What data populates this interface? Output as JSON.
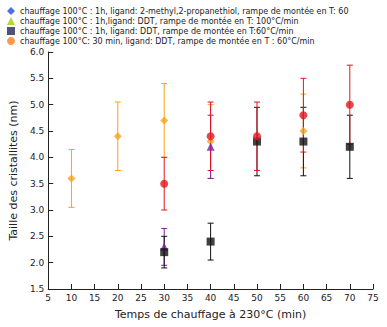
{
  "chart_data": {
    "type": "scatter",
    "x_label": "Temps de chauffage à 230°C (min)",
    "y_label": "Taille des cristallites (nm)",
    "xlim": [
      5,
      75
    ],
    "xticks": [
      5,
      10,
      15,
      20,
      25,
      30,
      35,
      40,
      45,
      50,
      55,
      60,
      65,
      70,
      75
    ],
    "ylim": [
      1.5,
      6.0
    ],
    "yticks": [
      1.5,
      {
        "value": 2,
        "label": "2.0"
      },
      2.5,
      {
        "value": 3,
        "label": "3.0"
      },
      3.5,
      {
        "value": 4,
        "label": "4.0"
      },
      4.5,
      {
        "value": 5,
        "label": "5.0"
      },
      5.5,
      {
        "value": 6,
        "label": "6.0"
      }
    ],
    "grid": false,
    "legend": "top",
    "series": [
      {
        "name": "chauffage 100°C : 1h, ligand: 2-methyl,2-propanethiol, rampe de montée en T: 60",
        "color": "#f7a21b",
        "marker": "diamond",
        "x": [
          10,
          20,
          30,
          40,
          60
        ],
        "values": [
          3.6,
          4.4,
          4.7,
          4.3,
          4.5
        ],
        "errors": [
          0.55,
          0.65,
          0.7,
          0.7,
          0.7
        ]
      },
      {
        "name": "chauffage 100°C : 1h,ligand: DDT, rampe de montée en T: 100°C/min",
        "color": "#7b1fa2",
        "marker": "triangle",
        "x": [
          30,
          40
        ],
        "values": [
          2.3,
          4.2
        ],
        "errors": [
          0.35,
          0.6
        ]
      },
      {
        "name": "chauffage 100°C : 1h, ligand: DDT, rampe de montée en T:60°C/min",
        "color": "#111111",
        "marker": "square",
        "x": [
          30,
          40,
          50,
          60,
          70
        ],
        "values": [
          2.2,
          2.4,
          4.3,
          4.3,
          4.2
        ],
        "errors": [
          0.3,
          0.35,
          0.65,
          0.65,
          0.6
        ]
      },
      {
        "name": "chauffage 100°C: 30 min, ligand: DDT, rampe de montée en T : 60°C/min",
        "color": "#e3161f",
        "marker": "circle",
        "x": [
          30,
          40,
          50,
          60,
          70
        ],
        "values": [
          3.5,
          4.4,
          4.4,
          4.8,
          5.0
        ],
        "errors": [
          0.5,
          0.65,
          0.65,
          0.7,
          0.75
        ]
      }
    ]
  }
}
